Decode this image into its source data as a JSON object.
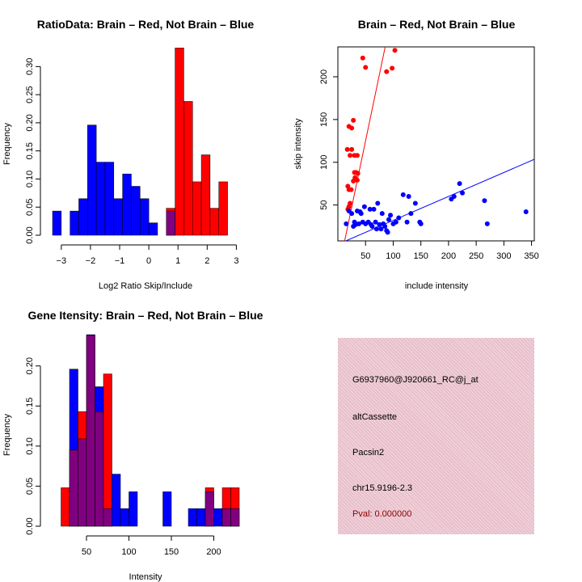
{
  "chart_data": [
    {
      "type": "bar",
      "title": "RatioData: Brain – Red, Not Brain – Blue",
      "xlabel": "Log2 Ratio Skip/Include",
      "ylabel": "Frequency",
      "xlim": [
        -3.3,
        3.1
      ],
      "ylim": [
        0,
        0.335
      ],
      "xticks": [
        -3,
        -2,
        -1,
        0,
        1,
        2,
        3
      ],
      "yticks": [
        0.0,
        0.05,
        0.1,
        0.15,
        0.2,
        0.25,
        0.3
      ],
      "ytick_labels": [
        "0.00",
        "0.05",
        "0.10",
        "0.15",
        "0.20",
        "0.25",
        "0.30"
      ],
      "bin_start": -3.3,
      "bin_width": 0.3,
      "series": [
        {
          "name": "Not Brain",
          "color": "#0000ff",
          "values": [
            0.043,
            0,
            0.043,
            0.065,
            0.196,
            0.13,
            0.13,
            0.065,
            0.109,
            0.087,
            0.065,
            0.022,
            0,
            0.043,
            0,
            0,
            0,
            0,
            0,
            0,
            0
          ]
        },
        {
          "name": "Brain",
          "color": "#ff0000",
          "values": [
            0,
            0,
            0,
            0,
            0,
            0,
            0,
            0,
            0,
            0,
            0,
            0,
            0,
            0.048,
            0.333,
            0.238,
            0.095,
            0.143,
            0.048,
            0.095,
            0
          ]
        }
      ]
    },
    {
      "type": "scatter",
      "title": "Brain – Red, Not Brain – Blue",
      "xlabel": "include intensity",
      "ylabel": "skip intensity",
      "xlim": [
        0,
        355
      ],
      "ylim": [
        8,
        235
      ],
      "xticks": [
        50,
        100,
        150,
        200,
        250,
        300,
        350
      ],
      "yticks": [
        50,
        100,
        150,
        200
      ],
      "series": [
        {
          "name": "Brain",
          "color": "#ff0000",
          "points": [
            [
              45,
              222
            ],
            [
              50,
              211
            ],
            [
              88,
              206
            ],
            [
              98,
              210
            ],
            [
              103,
              231
            ],
            [
              17,
              115
            ],
            [
              20,
              142
            ],
            [
              25,
              140
            ],
            [
              28,
              149
            ],
            [
              25,
              115
            ],
            [
              30,
              108
            ],
            [
              22,
              108
            ],
            [
              35,
              108
            ],
            [
              30,
              88
            ],
            [
              33,
              88
            ],
            [
              36,
              87
            ],
            [
              28,
              78
            ],
            [
              31,
              82
            ],
            [
              35,
              79
            ],
            [
              18,
              72
            ],
            [
              20,
              68
            ],
            [
              24,
              68
            ],
            [
              22,
              52
            ],
            [
              20,
              48
            ],
            [
              18,
              45
            ]
          ],
          "fit_line": {
            "intercept": -30,
            "slope": 3.1
          }
        },
        {
          "name": "Not Brain",
          "color": "#0000ff",
          "points": [
            [
              15,
              28
            ],
            [
              20,
              43
            ],
            [
              25,
              40
            ],
            [
              28,
              25
            ],
            [
              30,
              30
            ],
            [
              32,
              27
            ],
            [
              35,
              43
            ],
            [
              38,
              28
            ],
            [
              40,
              42
            ],
            [
              42,
              40
            ],
            [
              45,
              30
            ],
            [
              48,
              48
            ],
            [
              50,
              28
            ],
            [
              55,
              30
            ],
            [
              58,
              45
            ],
            [
              60,
              27
            ],
            [
              62,
              25
            ],
            [
              65,
              45
            ],
            [
              68,
              30
            ],
            [
              70,
              22
            ],
            [
              72,
              52
            ],
            [
              75,
              27
            ],
            [
              78,
              22
            ],
            [
              80,
              40
            ],
            [
              82,
              28
            ],
            [
              85,
              25
            ],
            [
              88,
              20
            ],
            [
              90,
              18
            ],
            [
              92,
              33
            ],
            [
              95,
              38
            ],
            [
              100,
              28
            ],
            [
              105,
              30
            ],
            [
              110,
              35
            ],
            [
              118,
              62
            ],
            [
              125,
              30
            ],
            [
              128,
              60
            ],
            [
              132,
              40
            ],
            [
              140,
              52
            ],
            [
              148,
              30
            ],
            [
              150,
              28
            ],
            [
              205,
              57
            ],
            [
              210,
              60
            ],
            [
              220,
              75
            ],
            [
              225,
              64
            ],
            [
              265,
              55
            ],
            [
              270,
              28
            ],
            [
              340,
              42
            ]
          ],
          "fit_line": {
            "intercept": 4,
            "slope": 0.28
          }
        }
      ]
    },
    {
      "type": "bar",
      "title": "Gene Itensity: Brain – Red, Not Brain – Blue",
      "xlabel": "Intensity",
      "ylabel": "Frequency",
      "xlim": [
        10,
        230
      ],
      "ylim": [
        0,
        0.235
      ],
      "xticks": [
        50,
        100,
        150,
        200
      ],
      "yticks": [
        0.0,
        0.05,
        0.1,
        0.15,
        0.2
      ],
      "ytick_labels": [
        "0.00",
        "0.05",
        "0.10",
        "0.15",
        "0.20"
      ],
      "bin_start": 20,
      "bin_width": 10,
      "overlap_color": "#800080",
      "series": [
        {
          "name": "Not Brain",
          "color": "#0000ff",
          "values": [
            0,
            0.196,
            0.109,
            0.239,
            0.174,
            0.022,
            0.065,
            0.022,
            0.043,
            0,
            0,
            0,
            0.043,
            0,
            0,
            0.022,
            0.022,
            0.043,
            0.022,
            0.022,
            0.022
          ]
        },
        {
          "name": "Brain",
          "color": "#ff0000",
          "values": [
            0.048,
            0.095,
            0.143,
            0.238,
            0.143,
            0.19,
            0,
            0,
            0,
            0,
            0,
            0,
            0,
            0,
            0,
            0,
            0,
            0.048,
            0,
            0.048,
            0.048
          ]
        }
      ]
    }
  ],
  "info": {
    "probe_id": "G6937960@J920661_RC@j_at",
    "event_type": "altCassette",
    "gene": "Pacsin2",
    "location": "chr15.9196-2.3",
    "pval": "Pval: 0.000000"
  }
}
